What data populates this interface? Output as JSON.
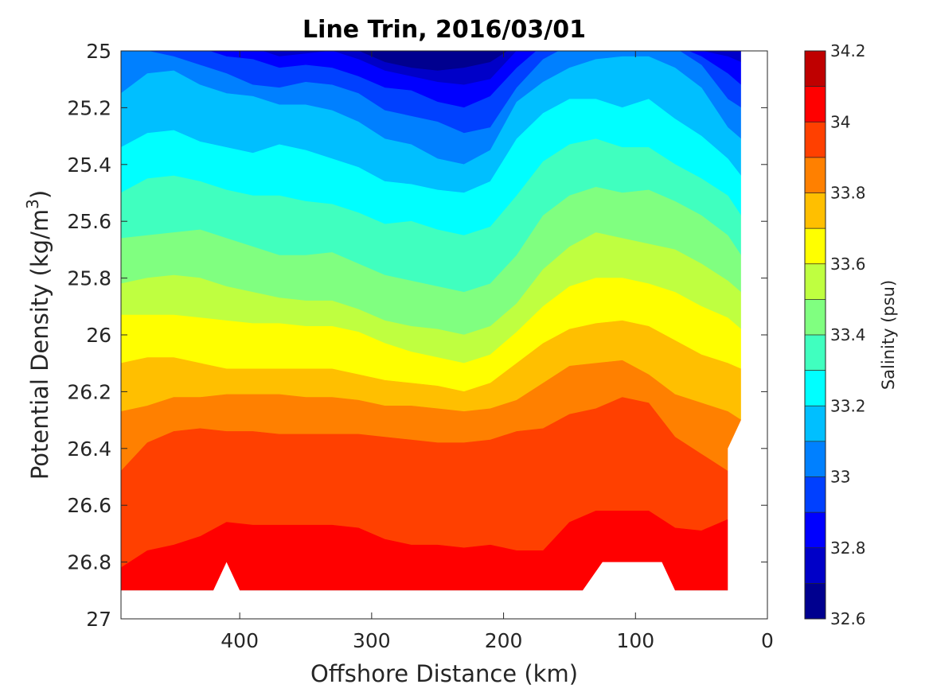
{
  "chart_data": {
    "type": "contour",
    "title": "Line Trin, 2016/03/01",
    "xlabel": "Offshore Distance (km)",
    "ylabel_main": "Potential Density (kg/m",
    "ylabel_sup": "3",
    "ylabel_close": ")",
    "xlim": [
      490,
      0
    ],
    "ylim": [
      25,
      27
    ],
    "x_reversed": true,
    "y_reversed": true,
    "xticks": [
      400,
      300,
      200,
      100,
      0
    ],
    "xtick_labels": [
      "400",
      "300",
      "200",
      "100",
      "0"
    ],
    "yticks": [
      25,
      25.2,
      25.4,
      25.6,
      25.8,
      26,
      26.2,
      26.4,
      26.6,
      26.8,
      27
    ],
    "ytick_labels": [
      "25",
      "25.2",
      "25.4",
      "25.6",
      "25.8",
      "26",
      "26.2",
      "26.4",
      "26.6",
      "26.8",
      "27"
    ],
    "colorbar": {
      "label": "Salinity (psu)",
      "lim": [
        32.6,
        34.2
      ],
      "ticks": [
        32.6,
        32.8,
        33,
        33.2,
        33.4,
        33.6,
        33.8,
        34,
        34.2
      ],
      "tick_labels": [
        "32.6",
        "32.8",
        "33",
        "33.2",
        "33.4",
        "33.6",
        "33.8",
        "34",
        "34.2"
      ],
      "levels": [
        32.6,
        32.7,
        32.8,
        32.9,
        33.0,
        33.1,
        33.2,
        33.3,
        33.4,
        33.5,
        33.6,
        33.7,
        33.8,
        33.9,
        34.0,
        34.1,
        34.2
      ],
      "colors": [
        "#00008f",
        "#0000c8",
        "#0000ff",
        "#0040ff",
        "#0080ff",
        "#00bfff",
        "#00ffff",
        "#40ffbf",
        "#80ff80",
        "#bfff40",
        "#ffff00",
        "#ffbf00",
        "#ff8000",
        "#ff4000",
        "#ff0000",
        "#bf0000"
      ]
    },
    "sampled_contours": {
      "x": [
        490,
        470,
        450,
        430,
        410,
        390,
        370,
        350,
        330,
        310,
        290,
        270,
        250,
        230,
        210,
        190,
        170,
        150,
        130,
        110,
        90,
        70,
        50,
        30,
        20
      ],
      "lines": [
        {
          "level": 32.7,
          "y": [
            24.98,
            24.98,
            24.98,
            24.98,
            24.98,
            24.99,
            25.0,
            25.0,
            24.99,
            25.0,
            25.04,
            25.06,
            25.07,
            25.06,
            25.04,
            24.98,
            24.98,
            24.98,
            24.98,
            24.98,
            24.98,
            24.98,
            24.98,
            24.98,
            24.98
          ]
        },
        {
          "level": 32.8,
          "y": [
            24.98,
            24.98,
            24.98,
            24.98,
            24.98,
            24.99,
            25.02,
            25.01,
            25.0,
            25.03,
            25.07,
            25.09,
            25.11,
            25.12,
            25.1,
            25.0,
            24.98,
            24.98,
            24.98,
            24.98,
            24.98,
            24.98,
            25.0,
            25.02,
            25.04
          ]
        },
        {
          "level": 32.9,
          "y": [
            24.98,
            24.98,
            24.98,
            24.99,
            25.02,
            25.03,
            25.06,
            25.05,
            25.06,
            25.09,
            25.13,
            25.14,
            25.18,
            25.2,
            25.16,
            25.06,
            24.98,
            24.98,
            24.98,
            24.98,
            24.98,
            24.98,
            25.02,
            25.08,
            25.12
          ]
        },
        {
          "level": 33.0,
          "y": [
            24.98,
            25.0,
            25.02,
            25.05,
            25.08,
            25.12,
            25.13,
            25.11,
            25.12,
            25.15,
            25.21,
            25.23,
            25.25,
            25.29,
            25.27,
            25.13,
            25.03,
            24.98,
            24.98,
            24.98,
            24.98,
            24.99,
            25.05,
            25.17,
            25.2
          ]
        },
        {
          "level": 33.1,
          "y": [
            25.15,
            25.08,
            25.07,
            25.12,
            25.15,
            25.16,
            25.19,
            25.19,
            25.21,
            25.25,
            25.31,
            25.33,
            25.38,
            25.4,
            25.35,
            25.18,
            25.11,
            25.06,
            25.03,
            25.02,
            25.02,
            25.06,
            25.13,
            25.27,
            25.31
          ]
        },
        {
          "level": 33.2,
          "y": [
            25.34,
            25.29,
            25.28,
            25.32,
            25.34,
            25.36,
            25.33,
            25.35,
            25.38,
            25.41,
            25.46,
            25.47,
            25.49,
            25.5,
            25.46,
            25.31,
            25.22,
            25.17,
            25.17,
            25.2,
            25.17,
            25.24,
            25.3,
            25.38,
            25.44
          ]
        },
        {
          "level": 33.3,
          "y": [
            25.5,
            25.45,
            25.44,
            25.46,
            25.49,
            25.51,
            25.51,
            25.53,
            25.54,
            25.57,
            25.61,
            25.6,
            25.63,
            25.65,
            25.62,
            25.51,
            25.39,
            25.33,
            25.31,
            25.34,
            25.34,
            25.4,
            25.45,
            25.51,
            25.58
          ]
        },
        {
          "level": 33.4,
          "y": [
            25.66,
            25.65,
            25.64,
            25.63,
            25.66,
            25.69,
            25.72,
            25.72,
            25.71,
            25.75,
            25.79,
            25.81,
            25.83,
            25.85,
            25.82,
            25.72,
            25.58,
            25.51,
            25.48,
            25.5,
            25.49,
            25.53,
            25.58,
            25.65,
            25.72
          ]
        },
        {
          "level": 33.5,
          "y": [
            25.82,
            25.8,
            25.79,
            25.8,
            25.83,
            25.85,
            25.87,
            25.88,
            25.88,
            25.91,
            25.95,
            25.97,
            25.98,
            26.0,
            25.97,
            25.89,
            25.77,
            25.69,
            25.64,
            25.66,
            25.68,
            25.7,
            25.75,
            25.81,
            25.85
          ]
        },
        {
          "level": 33.6,
          "y": [
            25.93,
            25.93,
            25.93,
            25.94,
            25.95,
            25.96,
            25.96,
            25.97,
            25.97,
            25.99,
            26.03,
            26.06,
            26.08,
            26.1,
            26.07,
            25.99,
            25.9,
            25.83,
            25.8,
            25.8,
            25.82,
            25.85,
            25.9,
            25.94,
            25.98
          ]
        },
        {
          "level": 33.7,
          "y": [
            26.1,
            26.08,
            26.08,
            26.1,
            26.12,
            26.12,
            26.12,
            26.12,
            26.12,
            26.14,
            26.16,
            26.17,
            26.18,
            26.2,
            26.17,
            26.1,
            26.03,
            25.98,
            25.96,
            25.95,
            25.97,
            26.02,
            26.07,
            26.1,
            26.12
          ]
        },
        {
          "level": 33.8,
          "y": [
            26.27,
            26.25,
            26.22,
            26.22,
            26.21,
            26.21,
            26.21,
            26.22,
            26.22,
            26.23,
            26.25,
            26.25,
            26.26,
            26.27,
            26.26,
            26.23,
            26.17,
            26.11,
            26.1,
            26.09,
            26.14,
            26.21,
            26.24,
            26.27,
            26.3
          ]
        },
        {
          "level": 33.9,
          "y": [
            26.48,
            26.38,
            26.34,
            26.33,
            26.34,
            26.34,
            26.35,
            26.35,
            26.35,
            26.35,
            26.36,
            26.37,
            26.38,
            26.38,
            26.37,
            26.34,
            26.33,
            26.28,
            26.26,
            26.22,
            26.24,
            26.36,
            26.42,
            26.48,
            26.55
          ]
        },
        {
          "level": 34.0,
          "y": [
            26.82,
            26.76,
            26.74,
            26.71,
            26.66,
            26.67,
            26.67,
            26.67,
            26.67,
            26.68,
            26.72,
            26.74,
            26.74,
            26.75,
            26.74,
            26.76,
            26.76,
            26.66,
            26.62,
            26.62,
            26.62,
            26.68,
            26.69,
            26.65,
            26.7
          ]
        },
        {
          "level": 34.1,
          "y": [
            26.9,
            26.9,
            26.9,
            26.9,
            26.9,
            26.9,
            26.9,
            26.9,
            26.9,
            26.9,
            26.9,
            26.9,
            26.9,
            26.9,
            26.9,
            26.9,
            26.9,
            26.9,
            26.9,
            26.9,
            26.9,
            26.9,
            26.9,
            26.9,
            26.9
          ]
        }
      ]
    },
    "no_data_regions": [
      {
        "x": [
          490,
          490,
          420,
          410,
          400,
          290
        ],
        "y": [
          26.9,
          27.0,
          27.0,
          26.8,
          26.9,
          26.9
        ]
      },
      {
        "x": [
          140,
          125,
          80,
          70
        ],
        "y": [
          26.9,
          26.8,
          26.8,
          26.9
        ]
      },
      {
        "x": [
          30,
          20,
          0
        ],
        "y": [
          26.8,
          26.3,
          25.0
        ]
      }
    ]
  }
}
